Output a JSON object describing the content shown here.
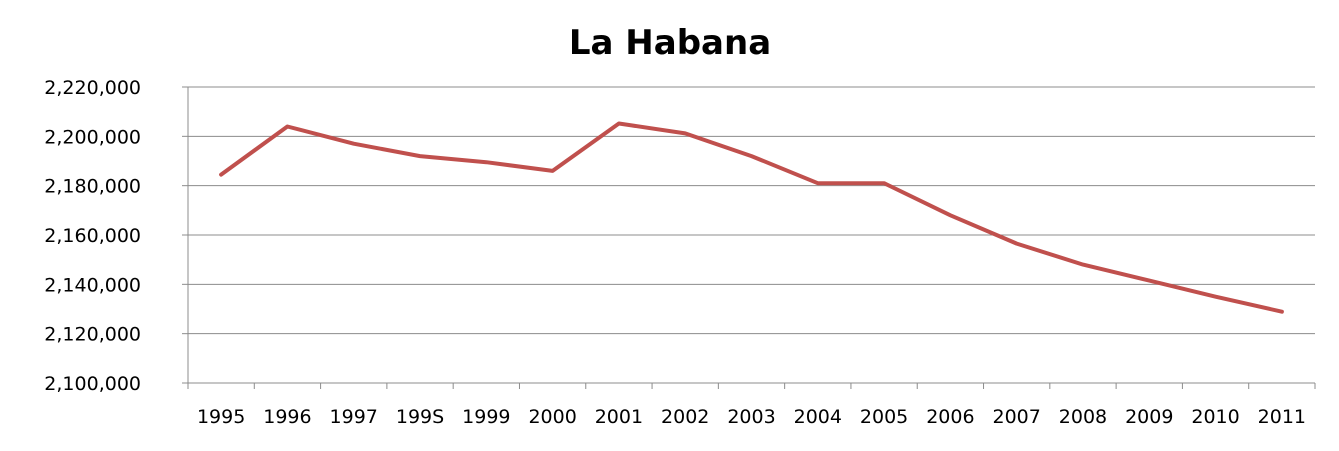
{
  "chart_data": {
    "type": "line",
    "title": "La Habana",
    "xlabel": "",
    "ylabel": "",
    "categories": [
      "1995",
      "1996",
      "1997",
      "199S",
      "1999",
      "2000",
      "2001",
      "2002",
      "2003",
      "2004",
      "2005",
      "2006",
      "2007",
      "2008",
      "2009",
      "2010",
      "2011"
    ],
    "y_ticks": [
      "2,100,000",
      "2,120,000",
      "2,140,000",
      "2,160,000",
      "2,180,000",
      "2,200,000",
      "2,220,000"
    ],
    "y_tick_values": [
      2100000,
      2120000,
      2140000,
      2160000,
      2180000,
      2200000,
      2220000
    ],
    "ylim": [
      2100000,
      2220000
    ],
    "grid": true,
    "legend": "none",
    "series": [
      {
        "color": "#c0504d",
        "values": [
          2184500,
          2204000,
          2197000,
          2192000,
          2189500,
          2186000,
          2205200,
          2201200,
          2192000,
          2181000,
          2181000,
          2168000,
          2156500,
          2148000,
          2141500,
          2135000,
          2128900
        ]
      }
    ]
  }
}
